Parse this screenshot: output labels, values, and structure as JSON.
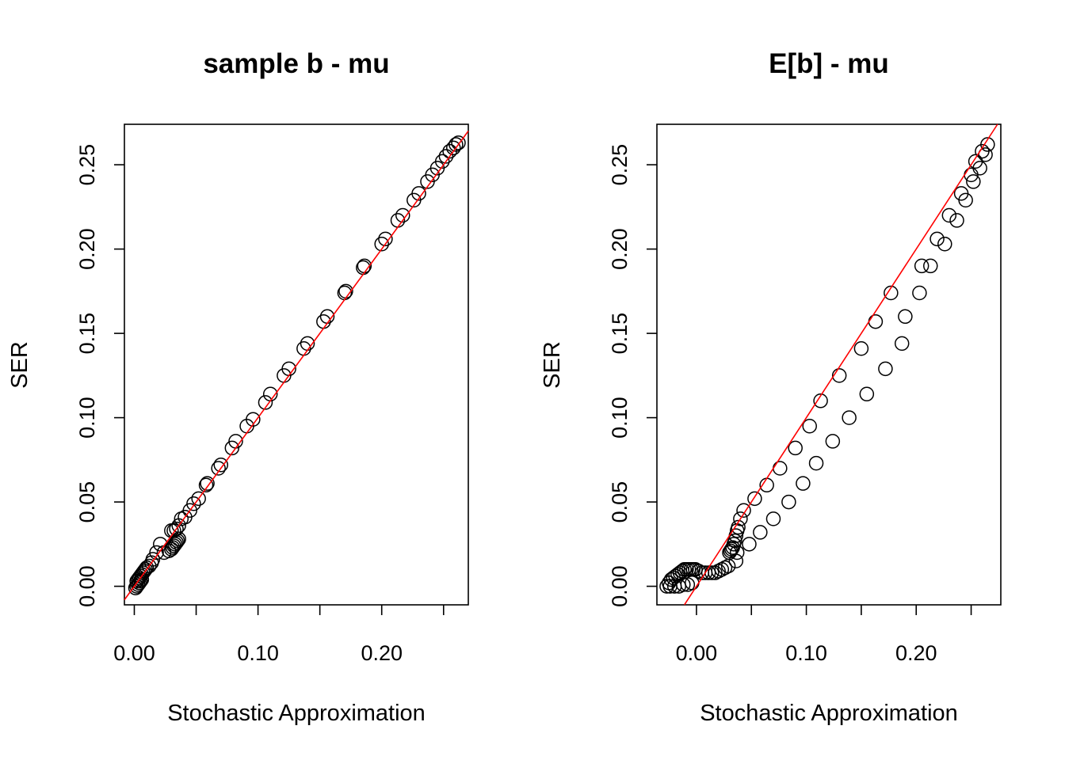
{
  "chart_data": [
    {
      "type": "scatter",
      "title": "sample b - mu",
      "xlabel": "Stochastic Approximation",
      "ylabel": "SER",
      "xlim": [
        -0.008,
        0.27
      ],
      "ylim": [
        -0.011,
        0.274
      ],
      "x_ticks": [
        0.0,
        0.05,
        0.1,
        0.15,
        0.2,
        0.25
      ],
      "x_tick_labels": [
        "0.00",
        "",
        "0.10",
        "",
        "0.20",
        ""
      ],
      "y_ticks": [
        0.0,
        0.05,
        0.1,
        0.15,
        0.2,
        0.25
      ],
      "y_tick_labels": [
        "0.00",
        "0.05",
        "0.10",
        "0.15",
        "0.20",
        "0.25"
      ],
      "reference_line": {
        "intercept": 0,
        "slope": 1,
        "color": "#ff0000"
      },
      "points": {
        "x": [
          0.001,
          0.002,
          0.003,
          0.004,
          0.005,
          0.006,
          0.002,
          0.003,
          0.004,
          0.005,
          0.006,
          0.007,
          0.008,
          0.009,
          0.01,
          0.012,
          0.014,
          0.015,
          0.018,
          0.021,
          0.024,
          0.028,
          0.03,
          0.031,
          0.032,
          0.033,
          0.034,
          0.035,
          0.036,
          0.03,
          0.032,
          0.034,
          0.036,
          0.038,
          0.041,
          0.045,
          0.048,
          0.052,
          0.058,
          0.059,
          0.068,
          0.07,
          0.079,
          0.082,
          0.091,
          0.096,
          0.106,
          0.11,
          0.121,
          0.125,
          0.137,
          0.14,
          0.153,
          0.156,
          0.17,
          0.171,
          0.185,
          0.186,
          0.2,
          0.203,
          0.213,
          0.217,
          0.226,
          0.23,
          0.237,
          0.241,
          0.245,
          0.249,
          0.252,
          0.255,
          0.258,
          0.26,
          0.262
        ],
        "y": [
          -0.001,
          0.0,
          0.001,
          0.002,
          0.003,
          0.004,
          0.003,
          0.004,
          0.005,
          0.006,
          0.007,
          0.008,
          0.009,
          0.01,
          0.011,
          0.012,
          0.014,
          0.016,
          0.02,
          0.025,
          0.02,
          0.021,
          0.022,
          0.023,
          0.024,
          0.025,
          0.026,
          0.027,
          0.028,
          0.033,
          0.033,
          0.034,
          0.036,
          0.04,
          0.041,
          0.045,
          0.049,
          0.052,
          0.06,
          0.061,
          0.07,
          0.072,
          0.082,
          0.086,
          0.095,
          0.099,
          0.109,
          0.114,
          0.125,
          0.129,
          0.141,
          0.144,
          0.157,
          0.16,
          0.174,
          0.175,
          0.189,
          0.19,
          0.203,
          0.206,
          0.217,
          0.22,
          0.229,
          0.233,
          0.24,
          0.244,
          0.248,
          0.252,
          0.255,
          0.258,
          0.26,
          0.262,
          0.263
        ]
      }
    },
    {
      "type": "scatter",
      "title": "E[b] - mu",
      "xlabel": "Stochastic Approximation",
      "ylabel": "SER",
      "xlim": [
        -0.036,
        0.277
      ],
      "ylim": [
        -0.011,
        0.274
      ],
      "x_ticks": [
        0.0,
        0.05,
        0.1,
        0.15,
        0.2,
        0.25
      ],
      "x_tick_labels": [
        "0.00",
        "",
        "0.10",
        "",
        "0.20",
        ""
      ],
      "y_ticks": [
        0.0,
        0.05,
        0.1,
        0.15,
        0.2,
        0.25
      ],
      "y_tick_labels": [
        "0.00",
        "0.05",
        "0.10",
        "0.15",
        "0.20",
        "0.25"
      ],
      "reference_line": {
        "intercept": 0,
        "slope": 1,
        "color": "#ff0000"
      },
      "points": {
        "x": [
          -0.027,
          -0.025,
          -0.023,
          -0.021,
          -0.019,
          -0.017,
          -0.015,
          -0.013,
          -0.011,
          -0.009,
          -0.007,
          -0.005,
          -0.003,
          -0.001,
          0.002,
          0.005,
          0.008,
          0.011,
          0.014,
          0.017,
          0.02,
          0.023,
          0.026,
          0.029,
          -0.024,
          -0.02,
          -0.016,
          -0.012,
          -0.008,
          -0.004,
          0.03,
          0.031,
          0.032,
          0.033,
          0.034,
          0.035,
          0.036,
          0.037,
          0.036,
          0.037,
          0.038,
          0.04,
          0.043,
          0.048,
          0.053,
          0.058,
          0.064,
          0.07,
          0.076,
          0.084,
          0.09,
          0.097,
          0.103,
          0.109,
          0.113,
          0.124,
          0.13,
          0.139,
          0.15,
          0.155,
          0.163,
          0.172,
          0.177,
          0.187,
          0.19,
          0.203,
          0.205,
          0.213,
          0.219,
          0.226,
          0.23,
          0.237,
          0.241,
          0.245,
          0.25,
          0.252,
          0.254,
          0.258,
          0.26,
          0.263,
          0.265
        ],
        "y": [
          0.0,
          0.002,
          0.004,
          0.005,
          0.006,
          0.007,
          0.008,
          0.009,
          0.01,
          0.01,
          0.01,
          0.01,
          0.01,
          0.01,
          0.009,
          0.008,
          0.008,
          0.008,
          0.008,
          0.008,
          0.009,
          0.01,
          0.011,
          0.012,
          0.0,
          0.0,
          0.0,
          0.001,
          0.001,
          0.002,
          0.02,
          0.021,
          0.022,
          0.023,
          0.025,
          0.027,
          0.03,
          0.033,
          0.015,
          0.02,
          0.035,
          0.04,
          0.045,
          0.025,
          0.052,
          0.032,
          0.06,
          0.04,
          0.07,
          0.05,
          0.082,
          0.061,
          0.095,
          0.073,
          0.11,
          0.086,
          0.125,
          0.1,
          0.141,
          0.114,
          0.157,
          0.129,
          0.174,
          0.144,
          0.16,
          0.174,
          0.19,
          0.19,
          0.206,
          0.203,
          0.22,
          0.217,
          0.233,
          0.229,
          0.244,
          0.24,
          0.252,
          0.248,
          0.258,
          0.256,
          0.262
        ]
      }
    }
  ]
}
